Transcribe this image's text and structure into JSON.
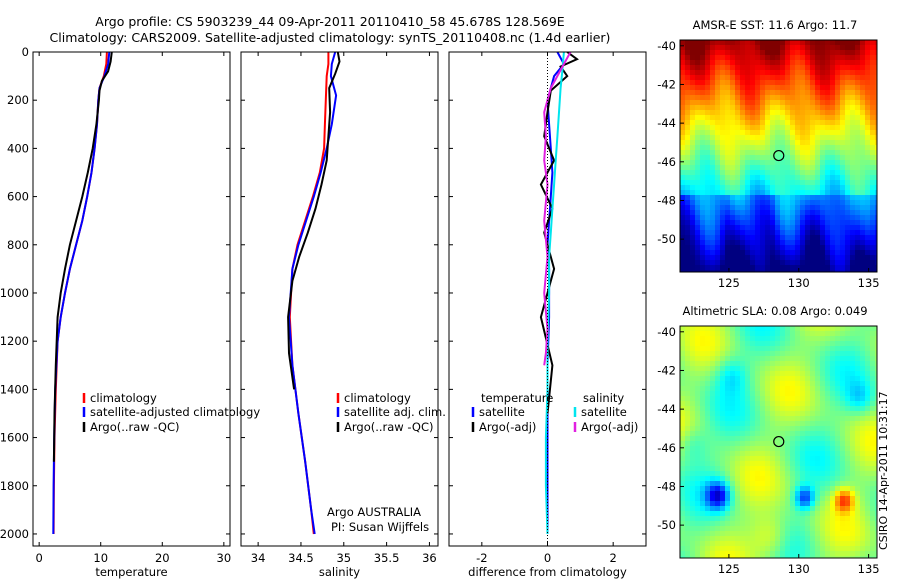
{
  "header": {
    "line1": "Argo profile: CS 5903239_44 09-Apr-2011 20110410_58 45.678S 128.569E",
    "line2": "Climatology: CARS2009. Satellite-adjusted climatology: synTS_20110408.nc (1.4d earlier)"
  },
  "footer": "CSIRO 14-Apr-2011 10:31:17",
  "colors": {
    "climatology": "#ff0000",
    "satellite": "#0000ff",
    "argo": "#000000",
    "salinity_sat": "#00e5ee",
    "salinity_argo": "#e020e0"
  },
  "chart_data": [
    {
      "type": "line",
      "name": "temperature",
      "xlabel": "temperature",
      "xlim": [
        -1,
        31
      ],
      "ylim": [
        0,
        2050
      ],
      "xticks": [
        "0",
        "10",
        "20",
        "30"
      ],
      "xtick_values": [
        0,
        10,
        20,
        30
      ],
      "yticks": [
        "0",
        "200",
        "400",
        "600",
        "800",
        "1000",
        "1200",
        "1400",
        "1600",
        "1800",
        "2000"
      ],
      "ytick_values": [
        0,
        200,
        400,
        600,
        800,
        1000,
        1200,
        1400,
        1600,
        1800,
        2000
      ],
      "legend": [
        "climatology",
        "satellite-adjusted climatology",
        "Argo(..raw -QC)"
      ],
      "series": [
        {
          "name": "climatology",
          "color": "#ff0000",
          "x": [
            11.0,
            10.9,
            10.5,
            9.8,
            9.6,
            9.4,
            9.0,
            8.5,
            7.8,
            7.0,
            6.0,
            5.0,
            4.2,
            3.5,
            3.0,
            2.7,
            2.5,
            2.4,
            2.35
          ],
          "y": [
            0,
            50,
            100,
            150,
            200,
            300,
            400,
            500,
            600,
            700,
            800,
            900,
            1000,
            1100,
            1200,
            1400,
            1600,
            1800,
            2000
          ]
        },
        {
          "name": "satellite-adjusted climatology",
          "color": "#0000ff",
          "x": [
            11.4,
            11.2,
            10.6,
            9.8,
            9.6,
            9.4,
            9.0,
            8.5,
            7.8,
            7.0,
            6.0,
            5.0,
            4.2,
            3.5,
            3.0,
            2.6,
            2.45,
            2.35,
            2.3
          ],
          "y": [
            0,
            50,
            100,
            150,
            200,
            300,
            400,
            500,
            600,
            700,
            800,
            900,
            1000,
            1100,
            1200,
            1400,
            1600,
            1800,
            2000
          ]
        },
        {
          "name": "Argo(..raw -QC)",
          "color": "#000000",
          "x": [
            11.8,
            11.6,
            11.2,
            10.2,
            9.8,
            9.7,
            9.3,
            8.7,
            7.9,
            7.0,
            6.0,
            5.0,
            4.2,
            3.5,
            3.0,
            2.7,
            2.5,
            2.4
          ],
          "y": [
            0,
            40,
            80,
            120,
            160,
            200,
            300,
            400,
            500,
            600,
            700,
            800,
            900,
            1000,
            1100,
            1300,
            1500,
            1700
          ]
        }
      ]
    },
    {
      "type": "line",
      "name": "salinity",
      "xlabel": "salinity",
      "xlim": [
        33.8,
        36.1
      ],
      "ylim": [
        0,
        2050
      ],
      "xticks": [
        "34",
        "34.5",
        "35",
        "35.5",
        "36"
      ],
      "xtick_values": [
        34,
        34.5,
        35,
        35.5,
        36
      ],
      "legend": [
        "climatology",
        "satellite adj. clim.",
        "Argo(..raw -QC)"
      ],
      "annotation": [
        "Argo AUSTRALIA",
        "PI: Susan Wijffels"
      ],
      "series": [
        {
          "name": "climatology",
          "color": "#ff0000",
          "x": [
            34.82,
            34.82,
            34.8,
            34.79,
            34.78,
            34.77,
            34.72,
            34.64,
            34.55,
            34.46,
            34.4,
            34.37,
            34.4,
            34.47,
            34.55,
            34.62,
            34.65
          ],
          "y": [
            0,
            50,
            100,
            200,
            300,
            400,
            500,
            600,
            700,
            800,
            900,
            1100,
            1300,
            1500,
            1700,
            1900,
            2000
          ]
        },
        {
          "name": "satellite adj. clim.",
          "color": "#0000ff",
          "x": [
            34.9,
            34.86,
            34.85,
            34.91,
            34.86,
            34.8,
            34.73,
            34.65,
            34.56,
            34.47,
            34.4,
            34.36,
            34.4,
            34.47,
            34.55,
            34.62,
            34.66
          ],
          "y": [
            0,
            50,
            100,
            180,
            300,
            400,
            500,
            600,
            700,
            800,
            900,
            1100,
            1300,
            1500,
            1700,
            1900,
            2000
          ]
        },
        {
          "name": "Argo(..raw -QC)",
          "color": "#000000",
          "x": [
            34.93,
            34.95,
            34.9,
            34.83,
            34.84,
            34.82,
            34.8,
            34.74,
            34.67,
            34.58,
            34.48,
            34.4,
            34.35,
            34.36,
            34.42
          ],
          "y": [
            0,
            40,
            90,
            150,
            250,
            350,
            450,
            550,
            650,
            750,
            850,
            950,
            1100,
            1250,
            1400
          ]
        }
      ]
    },
    {
      "type": "line",
      "name": "difference",
      "xlabel": "difference from climatology",
      "xlim": [
        -3,
        3
      ],
      "ylim": [
        0,
        2050
      ],
      "xticks": [
        "-2",
        "0",
        "2"
      ],
      "xtick_values": [
        -2,
        0,
        2
      ],
      "legend_temperature": [
        "temperature",
        "satellite",
        "Argo(-adj)"
      ],
      "legend_salinity": [
        "salinity",
        "satellite",
        "Argo(-adj)"
      ],
      "series": [
        {
          "name": "temperature satellite",
          "color": "#0000ff",
          "x": [
            0.3,
            0.5,
            0.2,
            0.1,
            0.0,
            0.05,
            0.1,
            0.15,
            0.1,
            0.05,
            0.0,
            0.05,
            0.05,
            0.0,
            0.0,
            0.0
          ],
          "y": [
            0,
            50,
            100,
            150,
            200,
            300,
            400,
            500,
            600,
            700,
            800,
            900,
            1100,
            1300,
            1500,
            2000
          ]
        },
        {
          "name": "temperature Argo(-adj)",
          "color": "#000000",
          "x": [
            0.6,
            0.9,
            0.4,
            0.6,
            0.1,
            0.0,
            -0.1,
            0.2,
            -0.2,
            0.15,
            -0.1,
            0.2,
            -0.2,
            0.15,
            0.0
          ],
          "y": [
            0,
            30,
            60,
            100,
            160,
            250,
            350,
            450,
            550,
            650,
            750,
            900,
            1100,
            1300,
            1500
          ]
        },
        {
          "name": "salinity satellite",
          "color": "#00e5ee",
          "x": [
            0.5,
            0.45,
            0.4,
            0.35,
            0.3,
            0.25,
            0.2,
            0.15,
            0.1,
            0.05,
            0.05,
            0.0,
            0.0,
            -0.05,
            -0.05,
            0.0
          ],
          "y": [
            0,
            80,
            150,
            250,
            350,
            450,
            550,
            650,
            750,
            850,
            1000,
            1200,
            1400,
            1600,
            1800,
            2000
          ]
        },
        {
          "name": "salinity Argo(-adj)",
          "color": "#e020e0",
          "x": [
            0.7,
            0.5,
            0.1,
            -0.1,
            -0.05,
            -0.1,
            0.0,
            -0.1,
            0.0,
            -0.1,
            0.0,
            -0.05,
            -0.1
          ],
          "y": [
            0,
            50,
            150,
            250,
            350,
            450,
            550,
            700,
            850,
            1000,
            1150,
            1250,
            1300
          ]
        }
      ]
    },
    {
      "type": "heatmap",
      "name": "sst_map",
      "title": "AMSR-E SST: 11.6 Argo: 11.7",
      "xlim": [
        121.5,
        135.6
      ],
      "ylim": [
        -51.7,
        -39.7
      ],
      "xticks": [
        "125",
        "130",
        "135"
      ],
      "xtick_values": [
        125,
        130,
        135
      ],
      "yticks": [
        "-40",
        "-42",
        "-44",
        "-46",
        "-48",
        "-50"
      ],
      "ytick_values": [
        -40,
        -42,
        -44,
        -46,
        -48,
        -50
      ],
      "marker": [
        128.569,
        -45.678
      ]
    },
    {
      "type": "heatmap",
      "name": "sla_map",
      "title": "Altimetric SLA: 0.08 Argo: 0.049",
      "xlim": [
        121.5,
        135.6
      ],
      "ylim": [
        -51.7,
        -39.7
      ],
      "xticks": [
        "125",
        "130",
        "135"
      ],
      "xtick_values": [
        125,
        130,
        135
      ],
      "yticks": [
        "-40",
        "-42",
        "-44",
        "-46",
        "-48",
        "-50"
      ],
      "ytick_values": [
        -40,
        -42,
        -44,
        -46,
        -48,
        -50
      ],
      "marker": [
        128.569,
        -45.678
      ]
    }
  ]
}
